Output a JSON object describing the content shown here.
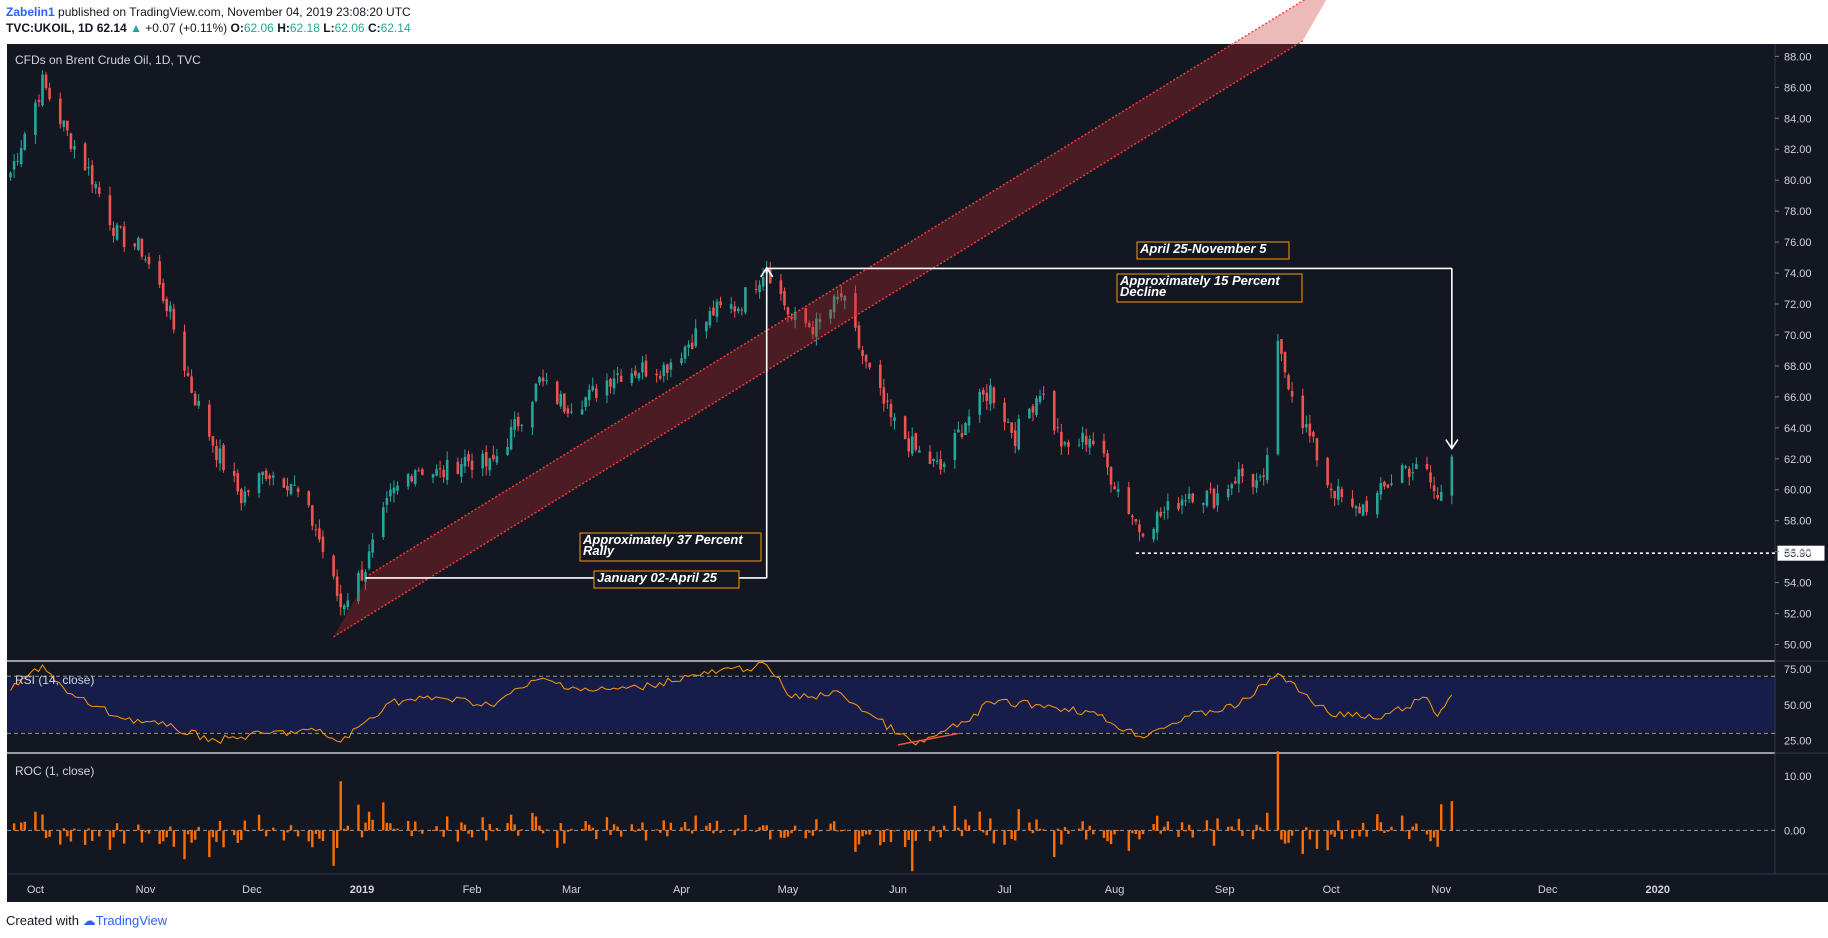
{
  "header": {
    "author": "Zabelin1",
    "published": "published on TradingView.com, November 04, 2019 23:08:20 UTC",
    "symbol": "TVC:UKOIL, 1D",
    "last": "62.14",
    "change_arrow": "▲",
    "change": "+0.07 (+0.11%)",
    "o_label": "O:",
    "o_value": "62.06",
    "h_label": "H:",
    "h_value": "62.18",
    "l_label": "L:",
    "l_value": "62.06",
    "c_label": "C:",
    "c_value": "62.14"
  },
  "footer": {
    "created_with": "Created with",
    "brand": "TradingView"
  },
  "colors": {
    "background": "#131722",
    "up": "#26a69a",
    "down": "#ef5350",
    "rsi": "#ff9800",
    "roc": "#ff6d00",
    "annotation_border": "#ff9800",
    "channel": "#ff3b3b"
  },
  "chart_data": [
    {
      "type": "candlestick",
      "title": "CFDs on Brent Crude Oil, 1D, TVC",
      "ylim": [
        49.0,
        88.8
      ],
      "y_ticks": [
        "88.00",
        "86.00",
        "84.00",
        "82.00",
        "80.00",
        "78.00",
        "76.00",
        "74.00",
        "72.00",
        "70.00",
        "68.00",
        "66.00",
        "64.00",
        "62.00",
        "60.00",
        "58.00",
        "56.00",
        "54.00",
        "52.00",
        "50.00"
      ],
      "x_ticks": [
        "Oct",
        "Nov",
        "Dec",
        "2019",
        "Feb",
        "Mar",
        "Apr",
        "May",
        "Jun",
        "Jul",
        "Aug",
        "Sep",
        "Oct",
        "Nov",
        "Dec",
        "2020"
      ],
      "series_close": [
        {
          "date": "2018-09-24",
          "close": 80.5
        },
        {
          "date": "2018-10-03",
          "close": 86.3
        },
        {
          "date": "2018-10-10",
          "close": 83.0
        },
        {
          "date": "2018-10-17",
          "close": 80.2
        },
        {
          "date": "2018-10-24",
          "close": 76.5
        },
        {
          "date": "2018-10-31",
          "close": 75.5
        },
        {
          "date": "2018-11-07",
          "close": 72.0
        },
        {
          "date": "2018-11-14",
          "close": 66.5
        },
        {
          "date": "2018-11-21",
          "close": 62.5
        },
        {
          "date": "2018-11-28",
          "close": 59.5
        },
        {
          "date": "2018-12-05",
          "close": 61.2
        },
        {
          "date": "2018-12-12",
          "close": 60.5
        },
        {
          "date": "2018-12-19",
          "close": 57.5
        },
        {
          "date": "2018-12-26",
          "close": 52.5
        },
        {
          "date": "2019-01-02",
          "close": 55.0
        },
        {
          "date": "2019-01-09",
          "close": 59.5
        },
        {
          "date": "2019-01-16",
          "close": 61.5
        },
        {
          "date": "2019-01-23",
          "close": 61.0
        },
        {
          "date": "2019-01-30",
          "close": 62.0
        },
        {
          "date": "2019-02-06",
          "close": 61.5
        },
        {
          "date": "2019-02-13",
          "close": 64.0
        },
        {
          "date": "2019-02-20",
          "close": 67.0
        },
        {
          "date": "2019-02-27",
          "close": 65.5
        },
        {
          "date": "2019-03-06",
          "close": 66.0
        },
        {
          "date": "2019-03-13",
          "close": 67.5
        },
        {
          "date": "2019-03-20",
          "close": 67.8
        },
        {
          "date": "2019-03-27",
          "close": 67.9
        },
        {
          "date": "2019-04-03",
          "close": 69.5
        },
        {
          "date": "2019-04-10",
          "close": 71.5
        },
        {
          "date": "2019-04-17",
          "close": 71.9
        },
        {
          "date": "2019-04-25",
          "close": 74.5
        },
        {
          "date": "2019-05-02",
          "close": 71.0
        },
        {
          "date": "2019-05-09",
          "close": 70.5
        },
        {
          "date": "2019-05-16",
          "close": 72.5
        },
        {
          "date": "2019-05-23",
          "close": 68.0
        },
        {
          "date": "2019-05-30",
          "close": 64.5
        },
        {
          "date": "2019-06-06",
          "close": 62.5
        },
        {
          "date": "2019-06-13",
          "close": 61.3
        },
        {
          "date": "2019-06-20",
          "close": 64.5
        },
        {
          "date": "2019-06-27",
          "close": 66.5
        },
        {
          "date": "2019-07-04",
          "close": 63.5
        },
        {
          "date": "2019-07-11",
          "close": 66.5
        },
        {
          "date": "2019-07-18",
          "close": 62.5
        },
        {
          "date": "2019-07-25",
          "close": 63.5
        },
        {
          "date": "2019-08-01",
          "close": 60.5
        },
        {
          "date": "2019-08-08",
          "close": 57.5
        },
        {
          "date": "2019-08-15",
          "close": 58.5
        },
        {
          "date": "2019-08-22",
          "close": 59.9
        },
        {
          "date": "2019-08-29",
          "close": 59.5
        },
        {
          "date": "2019-09-05",
          "close": 61.0
        },
        {
          "date": "2019-09-12",
          "close": 60.2
        },
        {
          "date": "2019-09-16",
          "close": 69.0
        },
        {
          "date": "2019-09-23",
          "close": 64.5
        },
        {
          "date": "2019-09-30",
          "close": 60.5
        },
        {
          "date": "2019-10-07",
          "close": 58.5
        },
        {
          "date": "2019-10-14",
          "close": 59.5
        },
        {
          "date": "2019-10-21",
          "close": 61.5
        },
        {
          "date": "2019-10-28",
          "close": 61.0
        },
        {
          "date": "2019-10-31",
          "close": 59.3
        },
        {
          "date": "2019-11-04",
          "close": 62.14
        }
      ],
      "price_label": "55.90",
      "annotations": [
        {
          "text": "Approximately 37 Percent Rally"
        },
        {
          "text": "January 02-April 25"
        },
        {
          "text": "April 25-November 5"
        },
        {
          "text": "Approximately 15 Percent Decline"
        }
      ]
    },
    {
      "type": "line",
      "title": "RSI (14, close)",
      "ylim": [
        17,
        80
      ],
      "y_ticks": [
        "75.00",
        "50.00",
        "25.00"
      ],
      "levels": [
        70,
        30
      ],
      "series": [
        {
          "name": "RSI",
          "points": [
            {
              "date": "2018-09-24",
              "value": 60
            },
            {
              "date": "2018-10-03",
              "value": 78
            },
            {
              "date": "2018-10-10",
              "value": 58
            },
            {
              "date": "2018-10-24",
              "value": 42
            },
            {
              "date": "2018-11-07",
              "value": 35
            },
            {
              "date": "2018-11-21",
              "value": 25
            },
            {
              "date": "2018-12-05",
              "value": 30
            },
            {
              "date": "2018-12-19",
              "value": 32
            },
            {
              "date": "2018-12-26",
              "value": 24
            },
            {
              "date": "2019-01-09",
              "value": 52
            },
            {
              "date": "2019-01-23",
              "value": 55
            },
            {
              "date": "2019-02-06",
              "value": 50
            },
            {
              "date": "2019-02-20",
              "value": 68
            },
            {
              "date": "2019-03-06",
              "value": 60
            },
            {
              "date": "2019-03-20",
              "value": 62
            },
            {
              "date": "2019-04-03",
              "value": 70
            },
            {
              "date": "2019-04-25",
              "value": 78
            },
            {
              "date": "2019-05-02",
              "value": 55
            },
            {
              "date": "2019-05-16",
              "value": 58
            },
            {
              "date": "2019-05-23",
              "value": 45
            },
            {
              "date": "2019-06-06",
              "value": 22
            },
            {
              "date": "2019-06-20",
              "value": 38
            },
            {
              "date": "2019-06-27",
              "value": 52
            },
            {
              "date": "2019-07-11",
              "value": 50
            },
            {
              "date": "2019-07-25",
              "value": 45
            },
            {
              "date": "2019-08-08",
              "value": 28
            },
            {
              "date": "2019-08-22",
              "value": 42
            },
            {
              "date": "2019-09-05",
              "value": 50
            },
            {
              "date": "2019-09-16",
              "value": 72
            },
            {
              "date": "2019-09-30",
              "value": 45
            },
            {
              "date": "2019-10-14",
              "value": 40
            },
            {
              "date": "2019-10-28",
              "value": 55
            },
            {
              "date": "2019-10-31",
              "value": 42
            },
            {
              "date": "2019-11-04",
              "value": 57
            }
          ]
        }
      ]
    },
    {
      "type": "bar",
      "title": "ROC (1, close)",
      "ylim": [
        -8,
        14
      ],
      "y_ticks": [
        "10.00",
        "0.00"
      ],
      "notable_values": [
        {
          "date": "2018-12-26",
          "value": 9.0
        },
        {
          "date": "2018-12-24",
          "value": -6.5
        },
        {
          "date": "2019-06-05",
          "value": -7.5
        },
        {
          "date": "2019-09-16",
          "value": 14.5
        },
        {
          "date": "2019-10-31",
          "value": -3.0
        },
        {
          "date": "2019-11-01",
          "value": 4.8
        }
      ]
    }
  ]
}
